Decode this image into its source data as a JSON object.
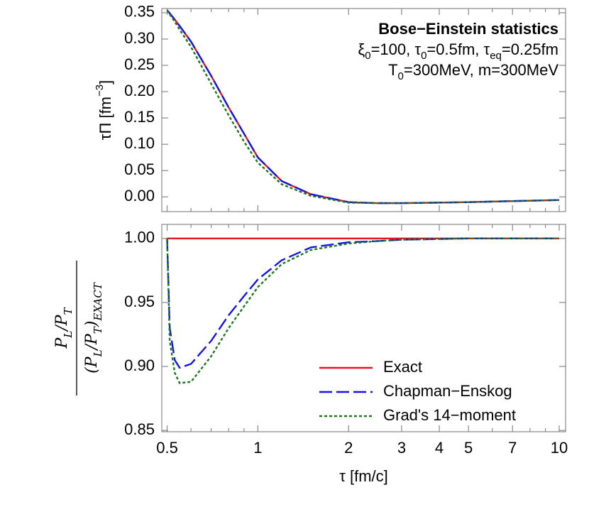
{
  "chart_data": [
    {
      "type": "line",
      "ylabel": [
        "τΠ [fm",
        {
          "sup": "−3"
        },
        "]"
      ],
      "annotations": [
        [
          "Bose−Einstein statistics"
        ],
        [
          "ξ",
          {
            "sub": "0"
          },
          "=100, ",
          "τ",
          {
            "sub": "0"
          },
          "=0.5fm, ",
          "τ",
          {
            "sub": "eq"
          },
          "=0.25fm"
        ],
        [
          "T",
          {
            "sub": "0"
          },
          "=300MeV, m=300MeV"
        ]
      ],
      "x": [
        0.5,
        0.51,
        0.53,
        0.55,
        0.6,
        0.7,
        0.8,
        0.9,
        1,
        1.2,
        1.5,
        2,
        2.5,
        3,
        5,
        7,
        10
      ],
      "series": [
        {
          "name": "Exact",
          "color": "#e8141c",
          "dash": "solid",
          "values": [
            0.355,
            0.349,
            0.337,
            0.325,
            0.295,
            0.23,
            0.17,
            0.12,
            0.075,
            0.03,
            0.005,
            -0.01,
            -0.012,
            -0.012,
            -0.01,
            -0.008,
            -0.006
          ]
        },
        {
          "name": "Chapman−Enskog",
          "color": "#1414e6",
          "dash": "dashed",
          "values": [
            0.355,
            0.349,
            0.337,
            0.325,
            0.295,
            0.23,
            0.17,
            0.12,
            0.075,
            0.03,
            0.005,
            -0.01,
            -0.012,
            -0.012,
            -0.01,
            -0.008,
            -0.006
          ]
        },
        {
          "name": "Grad's 14−moment",
          "color": "#1a7a1a",
          "dash": "dotted",
          "values": [
            0.355,
            0.347,
            0.333,
            0.318,
            0.285,
            0.215,
            0.155,
            0.105,
            0.065,
            0.024,
            0.002,
            -0.011,
            -0.012,
            -0.012,
            -0.01,
            -0.008,
            -0.006
          ]
        }
      ],
      "xscale": "log",
      "xlim": [
        0.48,
        10.5
      ],
      "xticks": [
        0.5,
        1,
        2,
        3,
        4,
        5,
        7,
        10
      ],
      "xminorticks": [
        0.6,
        0.7,
        0.8,
        0.9,
        6,
        8,
        9
      ],
      "ylim": [
        -0.028,
        0.358
      ],
      "yticks": [
        0.35,
        {
          "value": 0.3,
          "label": "0.30"
        },
        0.25,
        {
          "value": 0.2,
          "label": "0.20"
        },
        0.15,
        {
          "value": 0.1,
          "label": "0.10"
        },
        0.05,
        {
          "value": 0,
          "label": "0.00"
        }
      ]
    },
    {
      "type": "line",
      "ylabel_numerator": [
        "P",
        {
          "sub": "L"
        },
        "/",
        "P",
        {
          "sub": "T"
        }
      ],
      "ylabel_denominator": [
        "(P",
        {
          "sub": "L"
        },
        "/",
        "P",
        {
          "sub": "T"
        },
        ")",
        {
          "sub": "EXACT"
        }
      ],
      "xlabel": "τ [fm/c]",
      "x": [
        0.5,
        0.51,
        0.53,
        0.55,
        0.6,
        0.7,
        0.8,
        0.9,
        1,
        1.2,
        1.5,
        2,
        2.5,
        3,
        5,
        7,
        10
      ],
      "series": [
        {
          "name": "Exact",
          "color": "#e8141c",
          "dash": "solid",
          "values": [
            1,
            1,
            1,
            1,
            1,
            1,
            1,
            1,
            1,
            1,
            1,
            1,
            1,
            1,
            1,
            1,
            1
          ]
        },
        {
          "name": "Chapman−Enskog",
          "color": "#1414e6",
          "dash": "dashed",
          "values": [
            1,
            0.93,
            0.905,
            0.899,
            0.902,
            0.92,
            0.94,
            0.955,
            0.968,
            0.983,
            0.993,
            0.997,
            0.998,
            0.999,
            1,
            1,
            1
          ]
        },
        {
          "name": "Grad's 14−moment",
          "color": "#1a7a1a",
          "dash": "dotted",
          "values": [
            1,
            0.92,
            0.895,
            0.887,
            0.888,
            0.908,
            0.93,
            0.947,
            0.962,
            0.98,
            0.991,
            0.996,
            0.998,
            0.999,
            1,
            1,
            1
          ]
        }
      ],
      "legend": "lower right",
      "xscale": "log",
      "xlim": [
        0.48,
        10.5
      ],
      "xticks": [
        0.5,
        1,
        2,
        3,
        4,
        5,
        7,
        10
      ],
      "xminorticks": [
        0.6,
        0.7,
        0.8,
        0.9,
        6,
        8,
        9
      ],
      "ylim": [
        0.849,
        1.011
      ],
      "yticks": [
        {
          "value": 1,
          "label": "1.00"
        },
        0.95,
        {
          "value": 0.9,
          "label": "0.90"
        },
        0.85
      ]
    }
  ]
}
